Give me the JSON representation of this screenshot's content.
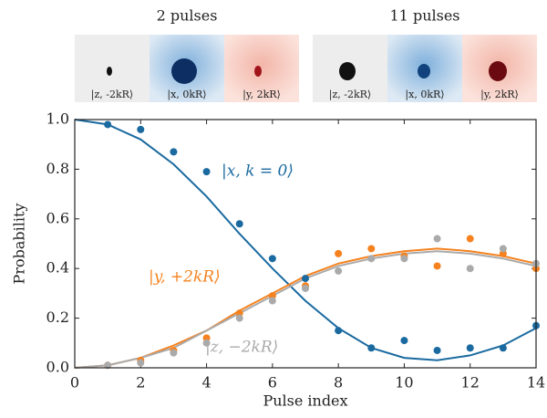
{
  "panels": [
    {
      "title": "2 pulses",
      "labels": [
        "|z, -2kR⟩",
        "|x, 0kR⟩",
        "|y, 2kR⟩"
      ]
    },
    {
      "title": "11 pulses",
      "labels": [
        "|z, -2kR⟩",
        "|x, 0kR⟩",
        "|y, 2kR⟩"
      ]
    }
  ],
  "chart_data": {
    "type": "scatter",
    "xlabel": "Pulse index",
    "ylabel": "Probability",
    "xlim": [
      0,
      14
    ],
    "xticks": [
      0,
      2,
      4,
      6,
      8,
      10,
      12,
      14
    ],
    "ylim": [
      0,
      1
    ],
    "yticks": [
      {
        "value": 0,
        "label": "0.0"
      },
      {
        "value": 0.2,
        "label": "0.2"
      },
      {
        "value": 0.4,
        "label": "0.4"
      },
      {
        "value": 0.6,
        "label": "0.6"
      },
      {
        "value": 0.8,
        "label": "0.8"
      },
      {
        "value": 1,
        "label": "1.0"
      }
    ],
    "x": [
      1,
      2,
      3,
      4,
      5,
      6,
      7,
      8,
      9,
      10,
      11,
      12,
      13,
      14
    ],
    "series": [
      {
        "name": "|x, k = 0⟩",
        "color": "#1a6aa0",
        "values": [
          0.98,
          0.96,
          0.87,
          0.79,
          0.58,
          0.44,
          0.36,
          0.15,
          0.08,
          0.11,
          0.07,
          0.08,
          0.08,
          0.17
        ]
      },
      {
        "name": "|y, +2kR⟩",
        "color": "#f5821f",
        "values": [
          0.01,
          0.03,
          0.07,
          0.12,
          0.22,
          0.29,
          0.33,
          0.46,
          0.48,
          0.45,
          0.41,
          0.52,
          0.46,
          0.4
        ]
      },
      {
        "name": "|z, −2kR⟩",
        "color": "#aaaaaa",
        "values": [
          0.01,
          0.02,
          0.06,
          0.1,
          0.2,
          0.27,
          0.32,
          0.39,
          0.44,
          0.44,
          0.52,
          0.4,
          0.48,
          0.42
        ]
      }
    ],
    "fit_x": [
      0,
      1,
      2,
      3,
      4,
      5,
      6,
      7,
      8,
      9,
      10,
      11,
      12,
      13,
      14
    ],
    "fits": [
      {
        "color": "#1a6aa0",
        "values": [
          1.0,
          0.98,
          0.92,
          0.82,
          0.69,
          0.54,
          0.4,
          0.27,
          0.16,
          0.08,
          0.04,
          0.03,
          0.05,
          0.09,
          0.16
        ]
      },
      {
        "color": "#f5821f",
        "values": [
          0,
          0.01,
          0.04,
          0.09,
          0.15,
          0.23,
          0.3,
          0.37,
          0.42,
          0.45,
          0.47,
          0.48,
          0.47,
          0.45,
          0.42
        ]
      },
      {
        "color": "#aaaaaa",
        "values": [
          0,
          0.01,
          0.04,
          0.08,
          0.15,
          0.22,
          0.29,
          0.36,
          0.41,
          0.44,
          0.46,
          0.47,
          0.46,
          0.44,
          0.41
        ]
      }
    ]
  }
}
